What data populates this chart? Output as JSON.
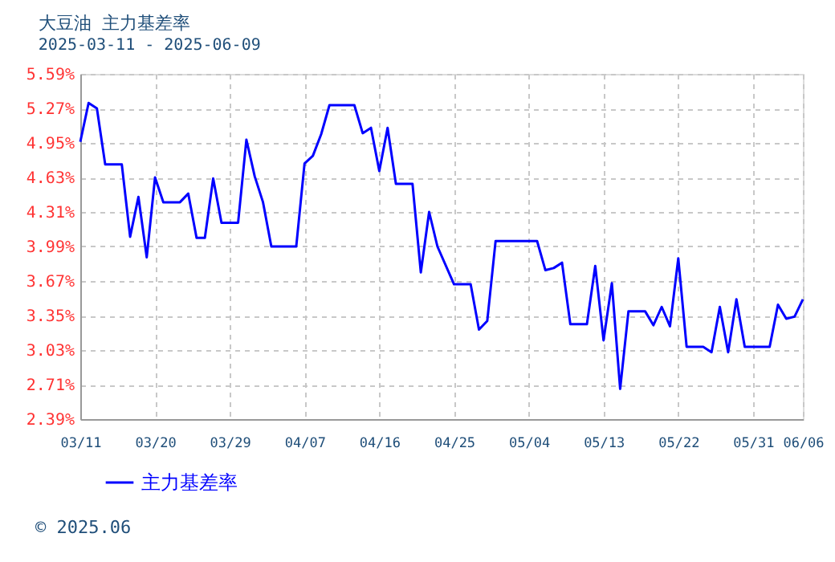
{
  "chart_data": {
    "type": "line",
    "title": "大豆油 主力基差率",
    "subtitle": "2025-03-11 - 2025-06-09",
    "x": [
      "2025-03-11",
      "2025-03-12",
      "2025-03-13",
      "2025-03-14",
      "2025-03-16",
      "2025-03-17",
      "2025-03-18",
      "2025-03-19",
      "2025-03-20",
      "2025-03-21",
      "2025-03-23",
      "2025-03-24",
      "2025-03-25",
      "2025-03-26",
      "2025-03-27",
      "2025-03-28",
      "2025-03-30",
      "2025-03-31",
      "2025-04-01",
      "2025-04-02",
      "2025-04-03",
      "2025-04-06",
      "2025-04-07",
      "2025-04-08",
      "2025-04-09",
      "2025-04-10",
      "2025-04-13",
      "2025-04-14",
      "2025-04-15",
      "2025-04-16",
      "2025-04-17",
      "2025-04-18",
      "2025-04-20",
      "2025-04-21",
      "2025-04-22",
      "2025-04-23",
      "2025-04-25",
      "2025-04-27",
      "2025-04-28",
      "2025-04-29",
      "2025-04-30",
      "2025-05-05",
      "2025-05-06",
      "2025-05-07",
      "2025-05-08",
      "2025-05-09",
      "2025-05-11",
      "2025-05-12",
      "2025-05-13",
      "2025-05-14",
      "2025-05-15",
      "2025-05-16",
      "2025-05-18",
      "2025-05-19",
      "2025-05-20",
      "2025-05-21",
      "2025-05-22",
      "2025-05-23",
      "2025-05-25",
      "2025-05-26",
      "2025-05-27",
      "2025-05-28",
      "2025-05-29",
      "2025-05-30",
      "2025-06-02",
      "2025-06-03",
      "2025-06-04",
      "2025-06-05",
      "2025-06-06"
    ],
    "series": [
      {
        "name": "主力基差率",
        "color": "#0000ff",
        "values": [
          4.96,
          5.32,
          5.27,
          4.75,
          4.75,
          4.08,
          4.45,
          3.89,
          4.63,
          4.4,
          4.4,
          4.48,
          4.07,
          4.07,
          4.62,
          4.21,
          4.21,
          4.98,
          4.64,
          4.4,
          3.99,
          3.99,
          4.76,
          4.83,
          5.03,
          5.3,
          5.3,
          5.04,
          5.09,
          4.69,
          5.09,
          4.57,
          4.57,
          3.75,
          4.31,
          3.99,
          3.64,
          3.64,
          3.22,
          3.3,
          4.04,
          4.04,
          3.77,
          3.79,
          3.84,
          3.27,
          3.27,
          3.81,
          3.12,
          3.65,
          2.67,
          3.39,
          3.39,
          3.26,
          3.43,
          3.25,
          3.88,
          3.06,
          3.06,
          3.01,
          3.43,
          3.01,
          3.5,
          3.06,
          3.06,
          3.45,
          3.32,
          3.34,
          3.5
        ]
      }
    ],
    "xlim": [
      "2025-03-11",
      "2025-06-06"
    ],
    "xticks": [
      {
        "value": "2025-03-11",
        "label": "03/11"
      },
      {
        "value": "2025-03-20",
        "label": "03/20"
      },
      {
        "value": "2025-03-29",
        "label": "03/29"
      },
      {
        "value": "2025-04-07",
        "label": "04/07"
      },
      {
        "value": "2025-04-16",
        "label": "04/16"
      },
      {
        "value": "2025-04-25",
        "label": "04/25"
      },
      {
        "value": "2025-05-04",
        "label": "05/04"
      },
      {
        "value": "2025-05-13",
        "label": "05/13"
      },
      {
        "value": "2025-05-22",
        "label": "05/22"
      },
      {
        "value": "2025-05-31",
        "label": "05/31"
      },
      {
        "value": "2025-06-06",
        "label": "06/06"
      }
    ],
    "ylim": [
      2.39,
      5.59
    ],
    "yticks": [
      {
        "value": 2.39,
        "label": "2.39%"
      },
      {
        "value": 2.71,
        "label": "2.71%"
      },
      {
        "value": 3.03,
        "label": "3.03%"
      },
      {
        "value": 3.35,
        "label": "3.35%"
      },
      {
        "value": 3.67,
        "label": "3.67%"
      },
      {
        "value": 3.99,
        "label": "3.99%"
      },
      {
        "value": 4.31,
        "label": "4.31%"
      },
      {
        "value": 4.63,
        "label": "4.63%"
      },
      {
        "value": 4.95,
        "label": "4.95%"
      },
      {
        "value": 5.27,
        "label": "5.27%"
      },
      {
        "value": 5.59,
        "label": "5.59%"
      }
    ],
    "grid": true,
    "legend": "bottom left",
    "marker": "none",
    "line_style": "solid",
    "annotations": [
      "© 2025.06"
    ]
  }
}
